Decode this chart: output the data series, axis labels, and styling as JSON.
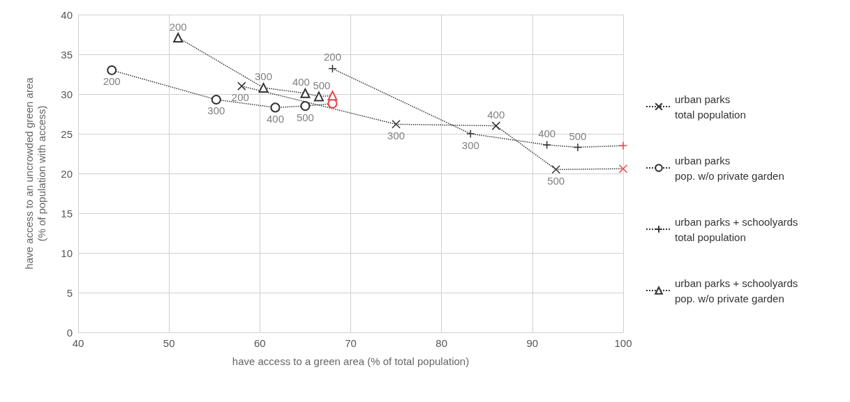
{
  "chart_data": {
    "type": "line",
    "xlabel": "have access to a green area (% of total population)",
    "ylabel": "have access to an uncrowded green area\n(% of population with access)",
    "xlim": [
      40,
      100
    ],
    "xticks": [
      40,
      50,
      60,
      70,
      80,
      90,
      100
    ],
    "ylim": [
      0,
      40
    ],
    "yticks": [
      0,
      5,
      10,
      15,
      20,
      25,
      30,
      35,
      40
    ],
    "grid": true,
    "legend": "right",
    "line_style": "dotted",
    "series": [
      {
        "name": "urban parks\ntotal population",
        "color": "#333333",
        "marker": "cross",
        "x": [
          58,
          75,
          86,
          92.6,
          100
        ],
        "values": [
          31,
          26.2,
          26,
          20.5,
          20.6
        ],
        "colors": [
          "#333333",
          "#333333",
          "#333333",
          "#333333",
          "#e8474c"
        ]
      },
      {
        "name": "urban parks\npop. w/o private garden",
        "color": "#333333",
        "marker": "circle",
        "x": [
          43.7,
          55.2,
          61.7,
          65,
          68
        ],
        "values": [
          33,
          29.3,
          28.3,
          28.5,
          28.8
        ],
        "colors": [
          "#333333",
          "#333333",
          "#333333",
          "#333333",
          "#e8474c"
        ]
      },
      {
        "name": "urban parks + schoolyards\ntotal population",
        "color": "#333333",
        "marker": "plus",
        "x": [
          68,
          83.2,
          91.6,
          95,
          100
        ],
        "values": [
          33.2,
          25,
          23.6,
          23.3,
          23.5
        ],
        "colors": [
          "#333333",
          "#333333",
          "#333333",
          "#333333",
          "#e8474c"
        ]
      },
      {
        "name": "urban parks + schoolyards\npop. w/o private garden",
        "color": "#333333",
        "marker": "triangle",
        "x": [
          51,
          60.4,
          65,
          66.5,
          68
        ],
        "values": [
          37.1,
          30.8,
          30.1,
          29.7,
          29.8
        ],
        "colors": [
          "#333333",
          "#333333",
          "#333333",
          "#333333",
          "#e8474c"
        ]
      }
    ],
    "annotations": [
      {
        "text": "200",
        "x": 58,
        "y": 31
      },
      {
        "text": "300",
        "x": 75,
        "y": 26.2
      },
      {
        "text": "400",
        "x": 86,
        "y": 26
      },
      {
        "text": "500",
        "x": 92.6,
        "y": 20.5
      },
      {
        "text": "200",
        "x": 43.7,
        "y": 33
      },
      {
        "text": "300",
        "x": 55.2,
        "y": 29.3
      },
      {
        "text": "400",
        "x": 61.7,
        "y": 28.3
      },
      {
        "text": "500",
        "x": 65,
        "y": 28.5
      },
      {
        "text": "200",
        "x": 68,
        "y": 33.2
      },
      {
        "text": "300",
        "x": 83.2,
        "y": 25
      },
      {
        "text": "400",
        "x": 91.6,
        "y": 23.6
      },
      {
        "text": "500",
        "x": 95,
        "y": 23.3
      },
      {
        "text": "200",
        "x": 51,
        "y": 37.1
      },
      {
        "text": "300",
        "x": 60.4,
        "y": 30.8
      },
      {
        "text": "400",
        "x": 65,
        "y": 30.1
      },
      {
        "text": "500",
        "x": 66.5,
        "y": 29.7
      }
    ]
  }
}
